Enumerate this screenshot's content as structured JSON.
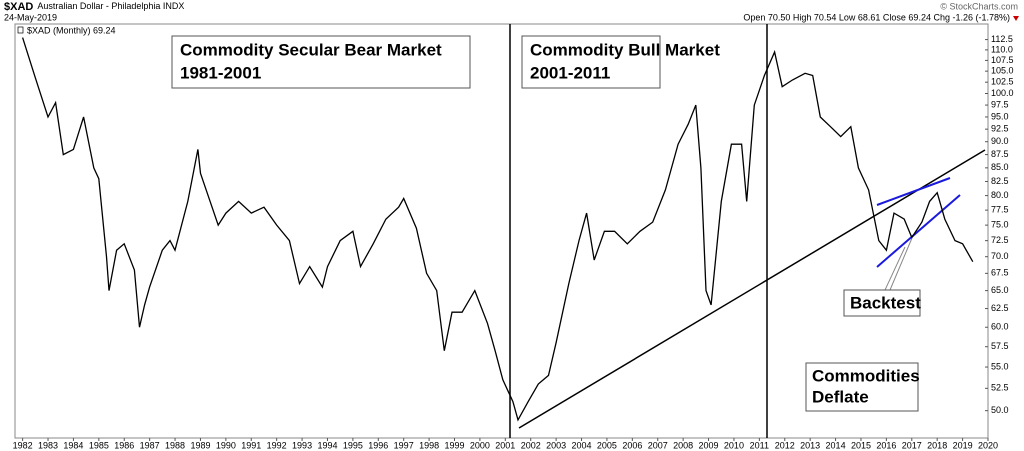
{
  "chart_data": {
    "type": "line",
    "symbol": "$XAD",
    "title": "Australian Dollar - Philadelphia INDX",
    "date": "24-May-2019",
    "quote": "Open 70.50 High 70.54 Low 68.61 Close 69.24 Chg -1.26 (-1.78%)",
    "credit": "© StockCharts.com",
    "log_scale": true,
    "grid": false,
    "xlim": [
      1981.7,
      2020.0
    ],
    "ylim": [
      47.1,
      116.4
    ],
    "xticks": [
      1982,
      1983,
      1984,
      1985,
      1986,
      1987,
      1988,
      1989,
      1990,
      1991,
      1992,
      1993,
      1994,
      1995,
      1996,
      1997,
      1998,
      1999,
      2000,
      2001,
      2002,
      2003,
      2004,
      2005,
      2006,
      2007,
      2008,
      2009,
      2010,
      2011,
      2012,
      2013,
      2014,
      2015,
      2016,
      2017,
      2018,
      2019,
      2020
    ],
    "yticks": [
      {
        "value": 50,
        "label": "50.0"
      },
      52.5,
      {
        "value": 55,
        "label": "55.0"
      },
      57.5,
      {
        "value": 60,
        "label": "60.0"
      },
      62.5,
      {
        "value": 65,
        "label": "65.0"
      },
      67.5,
      {
        "value": 70,
        "label": "70.0"
      },
      72.5,
      {
        "value": 75,
        "label": "75.0"
      },
      77.5,
      {
        "value": 80,
        "label": "80.0"
      },
      82.5,
      {
        "value": 85,
        "label": "85.0"
      },
      87.5,
      {
        "value": 90,
        "label": "90.0"
      },
      92.5,
      {
        "value": 95,
        "label": "95.0"
      },
      97.5,
      {
        "value": 100,
        "label": "100.0"
      },
      102.5,
      {
        "value": 105,
        "label": "105.0"
      },
      107.5,
      {
        "value": 110,
        "label": "110.0"
      },
      112.5
    ],
    "x": [
      1982.0,
      1982.5,
      1983.0,
      1983.3,
      1983.6,
      1984.0,
      1984.4,
      1984.8,
      1985.0,
      1985.3,
      1985.4,
      1985.7,
      1986.0,
      1986.4,
      1986.6,
      1986.8,
      1987.0,
      1987.5,
      1987.8,
      1988.0,
      1988.5,
      1988.9,
      1989.0,
      1989.3,
      1989.7,
      1990.0,
      1990.5,
      1991.0,
      1991.5,
      1992.0,
      1992.5,
      1992.9,
      1993.3,
      1993.8,
      1994.0,
      1994.5,
      1995.0,
      1995.3,
      1995.8,
      1996.3,
      1996.8,
      1997.0,
      1997.5,
      1997.9,
      1998.3,
      1998.6,
      1998.9,
      1999.3,
      1999.8,
      2000.3,
      2000.6,
      2000.9,
      2001.3,
      2001.5,
      2001.9,
      2002.3,
      2002.7,
      2003.0,
      2003.5,
      2003.9,
      2004.2,
      2004.5,
      2004.9,
      2005.3,
      2005.8,
      2006.3,
      2006.8,
      2007.3,
      2007.8,
      2008.2,
      2008.5,
      2008.7,
      2008.9,
      2009.1,
      2009.5,
      2009.9,
      2010.3,
      2010.5,
      2010.8,
      2011.2,
      2011.6,
      2011.9,
      2012.3,
      2012.8,
      2013.1,
      2013.4,
      2013.8,
      2014.2,
      2014.6,
      2014.9,
      2015.3,
      2015.7,
      2016.0,
      2016.3,
      2016.7,
      2017.0,
      2017.4,
      2017.7,
      2018.0,
      2018.3,
      2018.7,
      2019.0,
      2019.4
    ],
    "series": [
      {
        "name": "$XAD (Monthly) 69.24",
        "color": "#000000",
        "values": [
          113,
          103.5,
          95,
          98,
          87.5,
          88.5,
          95,
          85,
          83,
          70,
          65,
          71,
          72,
          68,
          60,
          63,
          65.5,
          71,
          72.5,
          71,
          79,
          88.5,
          84,
          80,
          75,
          77,
          79,
          77,
          78,
          75,
          72.5,
          66,
          68.5,
          65.5,
          68.5,
          72.5,
          74,
          68.5,
          72,
          76,
          78,
          79.5,
          74.5,
          67.5,
          65,
          57,
          62,
          62,
          65,
          60.5,
          57,
          53.5,
          51,
          49,
          51,
          53,
          54,
          58,
          66,
          72.5,
          77,
          69.5,
          74,
          74,
          72,
          74,
          75.5,
          81,
          89.5,
          93.5,
          97.5,
          85,
          65,
          63,
          79,
          89.5,
          89.5,
          79,
          97.5,
          104,
          109.5,
          101.5,
          103,
          104.5,
          104,
          95,
          93,
          91,
          93,
          85,
          81,
          72.5,
          71,
          77,
          76,
          73,
          75.5,
          79,
          80.5,
          76,
          72.5,
          72,
          69.24
        ]
      }
    ],
    "annotations": [
      {
        "lines": [
          "Commodity Secular Bear Market",
          "1981-2001"
        ]
      },
      {
        "lines": [
          "Commodity Bull Market",
          "2001-2011"
        ]
      },
      {
        "lines": [
          "Backtest"
        ]
      },
      {
        "lines": [
          "Commodities",
          "Deflate"
        ]
      }
    ]
  }
}
